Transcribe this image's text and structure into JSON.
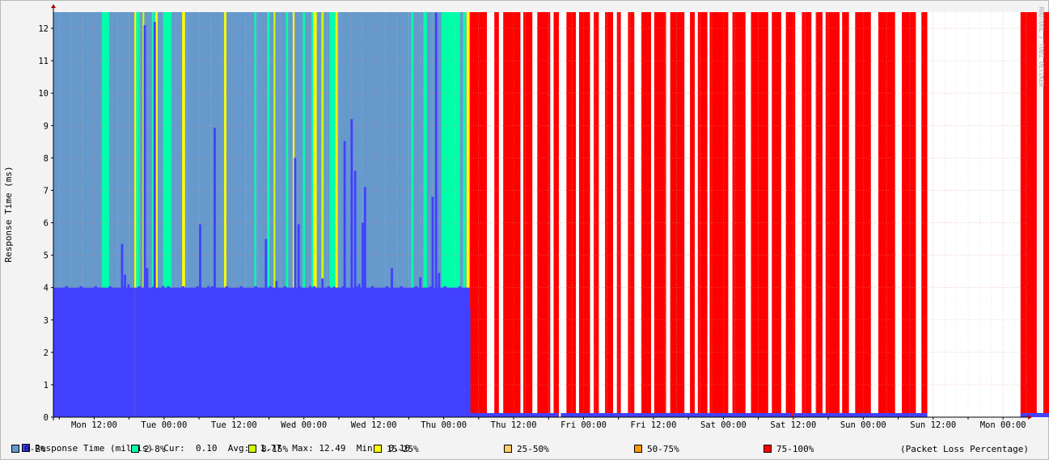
{
  "chart_data": {
    "type": "area",
    "ylabel": "Response Time (ms)",
    "watermark": "RRDTOOL / TOBI OETIKER",
    "ylim": [
      0,
      12.5
    ],
    "y_ticks": [
      0,
      1,
      2,
      3,
      4,
      5,
      6,
      7,
      8,
      9,
      10,
      11,
      12
    ],
    "x_tick_labels": [
      "Mon 12:00",
      "Tue 00:00",
      "Tue 12:00",
      "Wed 00:00",
      "Wed 12:00",
      "Thu 00:00",
      "Thu 12:00",
      "Fri 00:00",
      "Fri 12:00",
      "Sat 00:00",
      "Sat 12:00",
      "Sun 00:00",
      "Sun 12:00",
      "Mon 00:00"
    ],
    "x_range_hours": [
      -7.0,
      160.0
    ],
    "series": [
      {
        "name": "Response Time (millis)",
        "color": "#4141ff",
        "current": "0.10",
        "average": "1.77",
        "maximum": "12.49",
        "minimum": "0.10",
        "cur_label": "Cur:",
        "avg_label": "Avg:",
        "max_label": "Max:",
        "min_label": "Min:",
        "baseline_ms": 4.0,
        "spikes": [
          [
            4.6,
            5.35
          ],
          [
            5.1,
            4.4
          ],
          [
            5.7,
            4.1
          ],
          [
            8.5,
            12.1
          ],
          [
            8.9,
            4.6
          ],
          [
            10.2,
            12.2
          ],
          [
            11.6,
            4.05
          ],
          [
            18.0,
            5.95
          ],
          [
            19.4,
            4.05
          ],
          [
            20.5,
            8.93
          ],
          [
            29.3,
            5.5
          ],
          [
            31.1,
            4.2
          ],
          [
            34.3,
            8.0
          ],
          [
            34.9,
            5.95
          ],
          [
            36.9,
            4.05
          ],
          [
            39.0,
            4.28
          ],
          [
            41.0,
            4.03
          ],
          [
            42.8,
            8.52
          ],
          [
            44.0,
            9.2
          ],
          [
            44.6,
            7.6
          ],
          [
            45.3,
            4.12
          ],
          [
            45.9,
            6.0
          ],
          [
            46.3,
            7.1
          ],
          [
            50.9,
            4.6
          ],
          [
            55.8,
            4.32
          ],
          [
            57.9,
            6.8
          ],
          [
            58.5,
            12.49
          ],
          [
            59.0,
            4.45
          ],
          [
            64.2,
            3.35
          ]
        ],
        "gaps_hours": [
          [
            0.6,
            0.9
          ]
        ],
        "low_segments": [
          [
            64.4,
            79.7
          ],
          [
            80.1,
            119.6
          ],
          [
            120.0,
            143.0
          ],
          [
            159.0,
            167.8
          ]
        ],
        "low_value": 0.1
      }
    ],
    "loss_bands": [
      {
        "name": "0-2%",
        "color": "#6699cc"
      },
      {
        "name": "2-8%",
        "color": "#00ffaa"
      },
      {
        "name": "8-15%",
        "color": "#ccff00"
      },
      {
        "name": "15-25%",
        "color": "#ffff00"
      },
      {
        "name": "25-50%",
        "color": "#ffcc66"
      },
      {
        "name": "50-75%",
        "color": "#ff9900"
      },
      {
        "name": "75-100%",
        "color": "#ff0000"
      }
    ],
    "loss_band_caption": "(Packet Loss Percentage)",
    "loss_segments_2_8": [
      [
        1.3,
        2.6
      ],
      [
        7.2,
        7.8
      ],
      [
        9.9,
        10.4
      ],
      [
        11.8,
        13.3
      ],
      [
        27.5,
        27.8
      ],
      [
        29.7,
        30.1
      ],
      [
        32.9,
        33.3
      ],
      [
        35.8,
        36.2
      ],
      [
        37.3,
        38.2
      ],
      [
        40.4,
        41.5
      ],
      [
        54.4,
        54.8
      ],
      [
        56.5,
        57.1
      ],
      [
        59.6,
        62.8
      ],
      [
        63.3,
        63.8
      ]
    ],
    "loss_segments_8_15": [
      [
        8.3,
        8.6
      ],
      [
        30.8,
        31.1
      ],
      [
        39.0,
        39.4
      ]
    ],
    "loss_segments_15_25": [
      [
        6.9,
        7.2
      ],
      [
        10.5,
        10.9
      ],
      [
        15.1,
        15.6
      ],
      [
        22.3,
        22.7
      ],
      [
        34.1,
        34.4
      ],
      [
        37.6,
        38.2
      ],
      [
        41.4,
        41.8
      ],
      [
        63.9,
        64.4
      ]
    ],
    "loss_100_start": 64.5,
    "loss_100_end": 143.0,
    "loss_100_resume": 159.0,
    "loss_100_end2": 167.8
  }
}
